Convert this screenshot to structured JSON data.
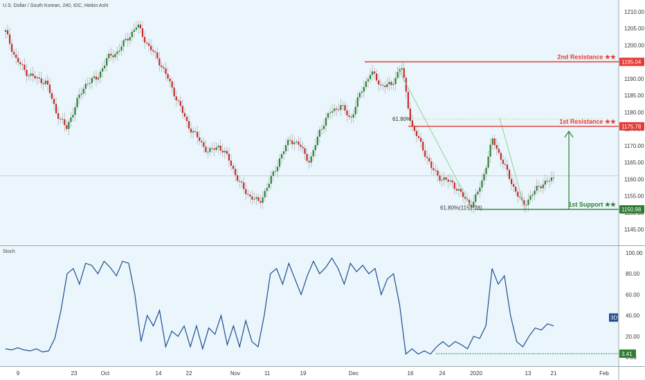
{
  "header": {
    "title": "U.S. Dollar / South Korean, 240, IDC, Heikin Ashi"
  },
  "colors": {
    "background": "#eaf6fb",
    "bull": "#2e7d32",
    "bear": "#c62828",
    "resistance": "#e53935",
    "support": "#2e7d32",
    "stoch_line": "#1e4b8f",
    "fib_arrow": "#8fd19e"
  },
  "chart_data": [
    {
      "type": "candlestick",
      "title": "U.S. Dollar / South Korean, 240, IDC, Heikin Ashi",
      "ylim": [
        1144,
        1212
      ],
      "yticks": [
        "1210.00",
        "1205.00",
        "1200.00",
        "1195.00",
        "1190.00",
        "1185.00",
        "1180.00",
        "1175.00",
        "1170.00",
        "1165.00",
        "1160.00",
        "1155.00",
        "1150.00",
        "1145.00"
      ],
      "xticks": [
        "9",
        "23",
        "Oct",
        "14",
        "22",
        "Nov",
        "11",
        "19",
        "Dec",
        "16",
        "24",
        "2020",
        "13",
        "21",
        "Feb"
      ],
      "price_path": [
        1204,
        1196,
        1192,
        1190,
        1189,
        1180,
        1175,
        1183,
        1189,
        1190,
        1196,
        1198,
        1202,
        1206,
        1200,
        1196,
        1190,
        1183,
        1176,
        1172,
        1168,
        1170,
        1166,
        1159,
        1155,
        1153,
        1159,
        1166,
        1172,
        1170,
        1165,
        1175,
        1180,
        1182,
        1178,
        1186,
        1192,
        1188,
        1188,
        1194,
        1176,
        1170,
        1163,
        1160,
        1159,
        1155,
        1152,
        1160,
        1172,
        1165,
        1158,
        1152,
        1156,
        1159,
        1160
      ],
      "current_price_line": 1161,
      "levels": [
        {
          "name": "2nd Resistance ★★",
          "value": "1195.04",
          "color": "#e53935"
        },
        {
          "name": "1st Resistance ★★",
          "value": "1175.78",
          "color": "#e53935"
        },
        {
          "name": "1st Support ★★",
          "value": "1150.98",
          "color": "#2e7d32"
        }
      ],
      "fib_labels": [
        {
          "text": "61.80%",
          "price": 1178
        },
        {
          "text": "61.80%(1151.28)",
          "price": 1151
        }
      ]
    },
    {
      "type": "line",
      "title": "Stoch",
      "ylim": [
        0,
        100
      ],
      "yticks": [
        "100.00",
        "80.00",
        "60.00",
        "40.00",
        "20.00",
        "0.00"
      ],
      "series": [
        {
          "name": "",
          "values": [
            8,
            7,
            9,
            7,
            6,
            8,
            5,
            6,
            18,
            45,
            80,
            85,
            70,
            90,
            88,
            80,
            92,
            86,
            78,
            92,
            90,
            60,
            15,
            40,
            30,
            45,
            10,
            25,
            20,
            30,
            10,
            30,
            8,
            28,
            22,
            40,
            12,
            30,
            10,
            35,
            15,
            10,
            40,
            80,
            85,
            70,
            90,
            75,
            60,
            78,
            92,
            80,
            86,
            95,
            85,
            70,
            90,
            82,
            88,
            80,
            85,
            60,
            75,
            80,
            50,
            3,
            8,
            3,
            6,
            3,
            10,
            15,
            10,
            15,
            12,
            8,
            20,
            18,
            30,
            85,
            70,
            78,
            40,
            15,
            10,
            20,
            28,
            26,
            32,
            30
          ],
          "last_value": "3D"
        }
      ],
      "level": {
        "value": "3.41",
        "color": "#2e7d32"
      }
    }
  ]
}
